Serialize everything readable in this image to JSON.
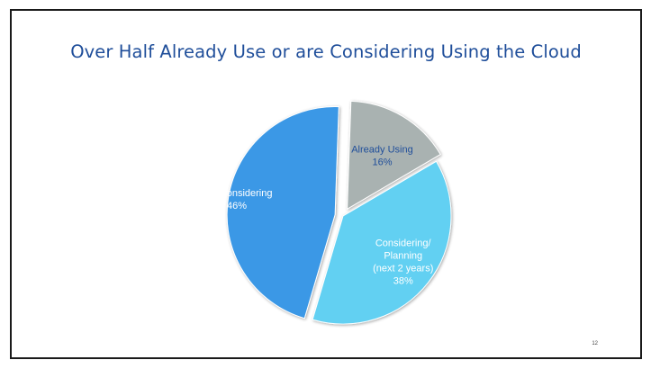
{
  "slide": {
    "title": "Over Half Already Use or are Considering Using the Cloud",
    "page_number": "12"
  },
  "chart_data": {
    "type": "pie",
    "title": "Over Half Already Use or are Considering Using the Cloud",
    "slices": [
      {
        "label_lines": [
          "Already Using",
          "16%"
        ],
        "value": 16,
        "color": "#a9b2b1",
        "label_color": "#1f4e9a",
        "exploded": true
      },
      {
        "label_lines": [
          "Considering/",
          "Planning",
          "(next 2 years)",
          "38%"
        ],
        "value": 38,
        "color": "#62d0f2",
        "label_color": "#ffffff",
        "exploded": false
      },
      {
        "label_lines": [
          "Not Considering",
          "46%"
        ],
        "value": 46,
        "color": "#3a98e6",
        "label_color": "#ffffff",
        "exploded": true
      }
    ],
    "start_angle_deg": 2,
    "legend": "none"
  }
}
